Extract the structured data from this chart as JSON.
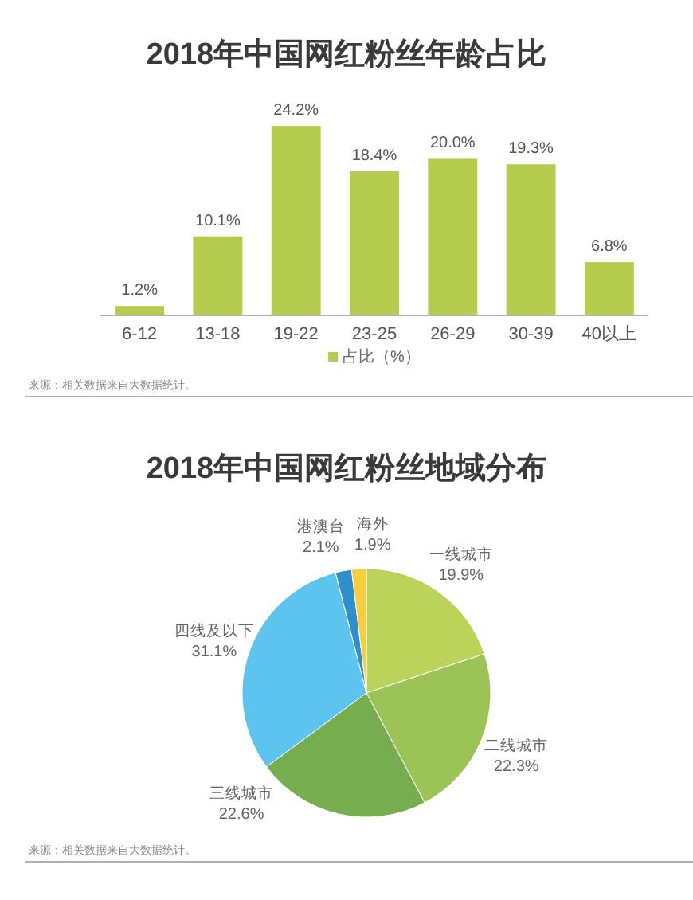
{
  "chart_data": [
    {
      "type": "bar",
      "title": "2018年中国网红粉丝年龄占比",
      "categories": [
        "6-12",
        "13-18",
        "19-22",
        "23-25",
        "26-29",
        "30-39",
        "40以上"
      ],
      "series": [
        {
          "name": "占比（%）",
          "color": "#b5cc4f",
          "values": [
            1.2,
            10.1,
            24.2,
            18.4,
            20.0,
            19.3,
            6.8
          ],
          "value_labels": [
            "1.2%",
            "10.1%",
            "24.2%",
            "18.4%",
            "20.0%",
            "19.3%",
            "6.8%"
          ]
        }
      ],
      "legend": "bottom",
      "annotations": [
        "来源：相关数据来自大数据统计。"
      ]
    },
    {
      "type": "pie",
      "title": "2018年中国网红粉丝地域分布",
      "categories": [
        "一线城市",
        "二线城市",
        "三线城市",
        "四线及以下",
        "港澳台",
        "海外"
      ],
      "values": [
        19.9,
        22.3,
        22.6,
        31.1,
        2.1,
        1.9
      ],
      "colors": [
        "#bcd35a",
        "#9cc356",
        "#76ad4f",
        "#5dc3ef",
        "#2f8fcb",
        "#f6cd3d"
      ],
      "value_labels": [
        "19.9%",
        "22.3%",
        "22.6%",
        "31.1%",
        "2.1%",
        "1.9%"
      ],
      "annotations": [
        "来源：相关数据来自大数据统计。"
      ]
    }
  ]
}
